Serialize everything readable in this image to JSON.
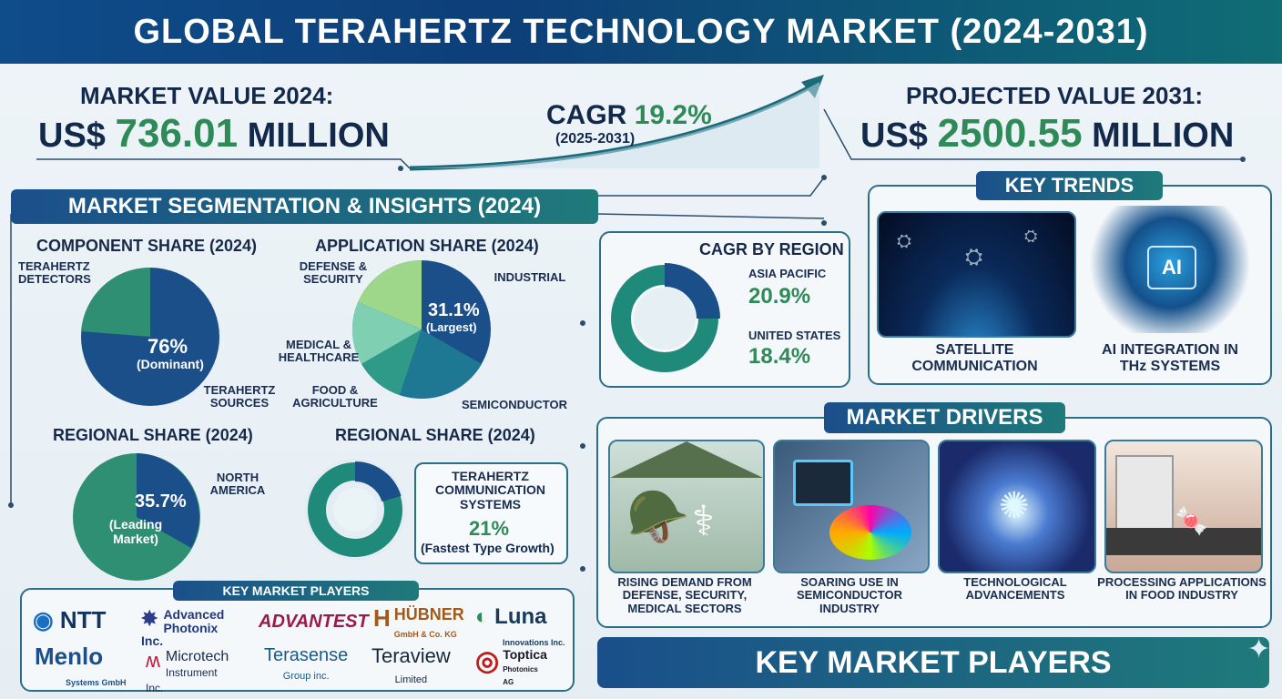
{
  "header": {
    "title": "GLOBAL TERAHERTZ TECHNOLOGY MARKET (2024-2031)"
  },
  "market": {
    "value2024_label": "MARKET VALUE 2024:",
    "value2024_prefix": "US$",
    "value2024_amount": "736.01",
    "value2024_unit": "MILLION",
    "cagr_label": "CAGR",
    "cagr_value": "19.2%",
    "cagr_period": "(2025-2031)",
    "proj_label": "PROJECTED VALUE 2031:",
    "proj_prefix": "US$",
    "proj_amount": "2500.55",
    "proj_unit": "MILLION"
  },
  "segmentation": {
    "title": "MARKET SEGMENTATION & INSIGHTS (2024)",
    "component": {
      "title": "COMPONENT SHARE (2024)",
      "detectors": "TERAHERTZ DETECTORS",
      "sources": "TERAHERTZ SOURCES",
      "value": "76%",
      "note": "(Dominant)"
    },
    "application": {
      "title": "APPLICATION SHARE (2024)",
      "defense": "DEFENSE & SECURITY",
      "industrial": "INDUSTRIAL",
      "medical": "MEDICAL & HEALTHCARE",
      "food": "FOOD & AGRICULTURE",
      "semiconductor": "SEMICONDUCTOR",
      "value": "31.1%",
      "note": "(Largest)"
    },
    "regional": {
      "title": "REGIONAL SHARE (2024)",
      "region": "NORTH AMERICA",
      "value": "35.7%",
      "note": "(Leading Market)"
    },
    "regional2": {
      "title": "REGIONAL SHARE (2024)",
      "type": "TERAHERTZ COMMUNICATION SYSTEMS",
      "value": "21%",
      "note": "(Fastest Type Growth)"
    }
  },
  "cagr_region": {
    "title": "CAGR BY REGION",
    "ap_label": "ASIA PACIFIC",
    "ap_value": "20.9%",
    "us_label": "UNITED STATES",
    "us_value": "18.4%"
  },
  "trends": {
    "title": "KEY TRENDS",
    "item1": "SATELLITE COMMUNICATION",
    "item2": "AI INTEGRATION IN THz SYSTEMS",
    "ai_badge": "AI"
  },
  "drivers": {
    "title": "MARKET DRIVERS",
    "d1": "RISING DEMAND FROM DEFENSE, SECURITY, MEDICAL SECTORS",
    "d2": "SOARING USE IN SEMICONDUCTOR INDUSTRY",
    "d3": "TECHNOLOGICAL ADVANCEMENTS",
    "d4": "PROCESSING APPLICATIONS IN FOOD INDUSTRY"
  },
  "players": {
    "title": "KEY MARKET PLAYERS",
    "footer_title": "KEY MARKET PLAYERS",
    "ntt": "NTT",
    "advanced": "Advanced",
    "advanced_sub": "Photonix Inc.",
    "advantest": "ADVANTEST",
    "hubner": "HÜBNER",
    "hubner_sub": "GmbH & Co. KG",
    "luna": "Luna",
    "luna_sub": "Innovations Inc.",
    "menlo": "Menlo",
    "menlo_sub": "Systems GmbH",
    "microtech": "Microtech",
    "microtech_sub": "Instrument Inc.",
    "terasense": "Terasense",
    "terasense_sub": "Group inc.",
    "teraview": "Teraview",
    "teraview_sub": "Limited",
    "toptica": "Toptica",
    "toptica_sub": "Photonics AG"
  },
  "colors": {
    "navy": "#1a4f8a",
    "teal": "#1f8a7a",
    "green": "#2e8b57",
    "light_green": "#7fcf8f"
  }
}
